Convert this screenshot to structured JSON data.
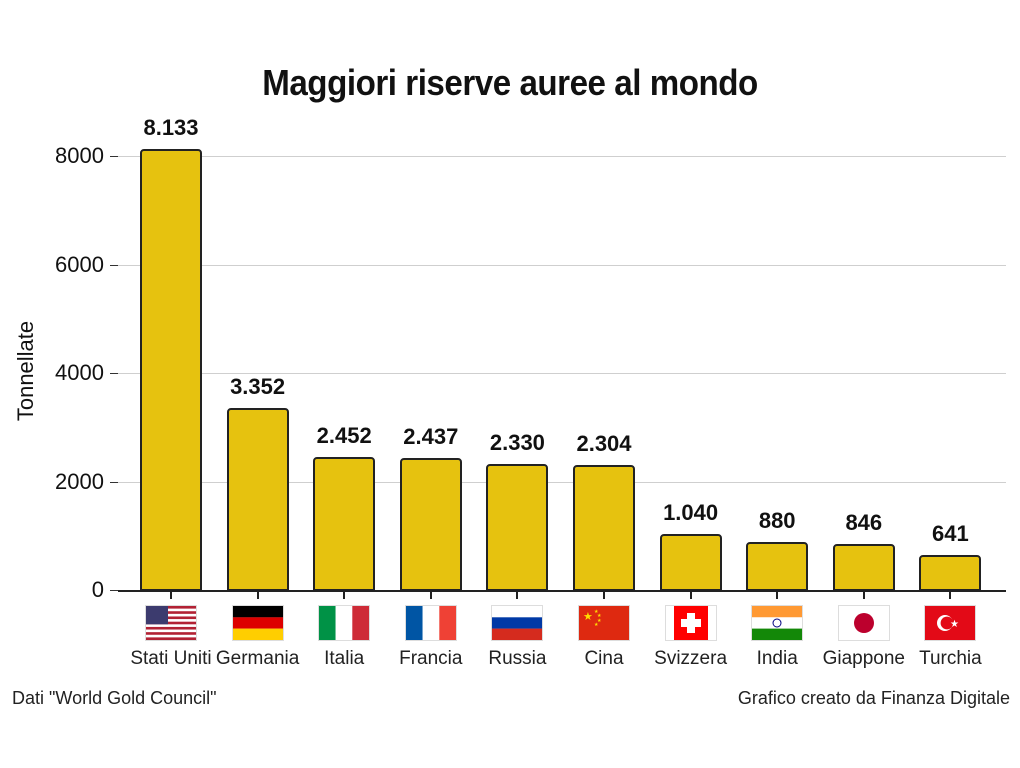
{
  "chart_data": {
    "type": "bar",
    "title": "Maggiori riserve auree al mondo",
    "xlabel": "",
    "ylabel": "Tonnellate",
    "ylim": [
      0,
      8500
    ],
    "yticks": [
      0,
      2000,
      4000,
      6000,
      8000
    ],
    "grid": true,
    "categories": [
      "Stati Uniti",
      "Germania",
      "Italia",
      "Francia",
      "Russia",
      "Cina",
      "Svizzera",
      "India",
      "Giappone",
      "Turchia"
    ],
    "values": [
      8133,
      3352,
      2452,
      2437,
      2330,
      2304,
      1040,
      880,
      846,
      641
    ],
    "value_labels": [
      "8.133",
      "3.352",
      "2.452",
      "2.437",
      "2.330",
      "2.304",
      "1.040",
      "880",
      "846",
      "641"
    ],
    "bar_color": "#e6c20f",
    "annotations": [
      "Dati \"World Gold Council\"",
      "Grafico creato da Finanza Digitale"
    ]
  },
  "title": "Maggiori riserve auree al mondo",
  "ylabel": "Tonnellate",
  "yticks": [
    "0",
    "2000",
    "4000",
    "6000",
    "8000"
  ],
  "bars": [
    {
      "country": "Stati Uniti",
      "label": "8.133",
      "flag": "us-flag"
    },
    {
      "country": "Germania",
      "label": "3.352",
      "flag": "germany-flag"
    },
    {
      "country": "Italia",
      "label": "2.452",
      "flag": "italy-flag"
    },
    {
      "country": "Francia",
      "label": "2.437",
      "flag": "france-flag"
    },
    {
      "country": "Russia",
      "label": "2.330",
      "flag": "russia-flag"
    },
    {
      "country": "Cina",
      "label": "2.304",
      "flag": "china-flag"
    },
    {
      "country": "Svizzera",
      "label": "1.040",
      "flag": "switzerland-flag"
    },
    {
      "country": "India",
      "label": "880",
      "flag": "india-flag"
    },
    {
      "country": "Giappone",
      "label": "846",
      "flag": "japan-flag"
    },
    {
      "country": "Turchia",
      "label": "641",
      "flag": "turkey-flag"
    }
  ],
  "footer": {
    "source": "Dati \"World Gold Council\"",
    "credit": "Grafico creato da Finanza Digitale"
  }
}
